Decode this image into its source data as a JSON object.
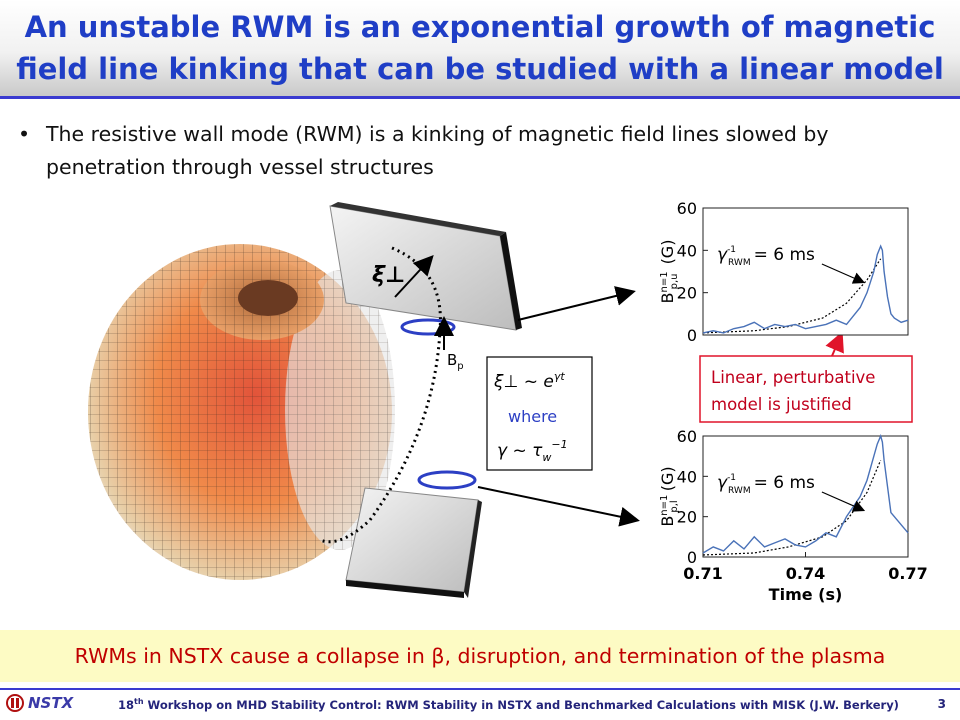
{
  "slide": {
    "title": "An unstable RWM is an exponential growth of magnetic field line kinking that can be studied with a linear model",
    "bullet": "The resistive wall mode (RWM) is a kinking of magnetic field lines slowed by penetration through vessel structures",
    "bottom_banner": "RWMs in NSTX cause a collapse in β, disruption, and termination of the plasma",
    "footer": {
      "logo_text": "NSTX",
      "ordinal": "18",
      "ordinal_suffix": "th",
      "text": " Workshop on MHD Stability Control: RWM Stability in NSTX and Benchmarked Calculations with MISK (J.W. Berkery)",
      "page_number": "3"
    }
  },
  "illustration": {
    "xi_label": "ξ⊥",
    "bp_label": "B",
    "bp_sub": "p",
    "box_line1": "ξ⊥ ~ e",
    "box_line1_exp": "γt",
    "box_where": "where",
    "box_line3": "γ ~ τ",
    "box_line3_sub": "w",
    "box_line3_sup": "−1",
    "callout": [
      "Linear, perturbative",
      "model is justified"
    ]
  },
  "chart_data": [
    {
      "type": "line",
      "name": "upper",
      "ylabel_main": "B",
      "ylabel_sup": "n=1",
      "ylabel_sub": "p,u",
      "ylabel_unit": " (G)",
      "ylim": [
        0,
        60
      ],
      "yticks": [
        "0",
        "20",
        "40",
        "60"
      ],
      "xlim": [
        0.71,
        0.77
      ],
      "annotation": "γ",
      "annotation_sup": "-1",
      "annotation_sub": "RWM",
      "annotation_value": "= 6 ms",
      "x": [
        0.71,
        0.713,
        0.716,
        0.719,
        0.722,
        0.725,
        0.728,
        0.731,
        0.734,
        0.737,
        0.74,
        0.743,
        0.746,
        0.749,
        0.752,
        0.754,
        0.756,
        0.758,
        0.76,
        0.761,
        0.762,
        0.7625,
        0.763,
        0.764,
        0.765,
        0.766,
        0.768,
        0.77
      ],
      "y": [
        1,
        2,
        1,
        3,
        4,
        6,
        3,
        5,
        4,
        5,
        3,
        4,
        5,
        7,
        5,
        9,
        13,
        20,
        30,
        38,
        42,
        40,
        30,
        18,
        10,
        8,
        6,
        7
      ],
      "fit_x": [
        0.71,
        0.725,
        0.735,
        0.745,
        0.752,
        0.758,
        0.762
      ],
      "fit_y": [
        1,
        2,
        4,
        8,
        15,
        26,
        36
      ]
    },
    {
      "type": "line",
      "name": "lower",
      "ylabel_main": "B",
      "ylabel_sup": "n=1",
      "ylabel_sub": "p,l",
      "ylabel_unit": " (G)",
      "ylim": [
        0,
        60
      ],
      "yticks": [
        "0",
        "20",
        "40",
        "60"
      ],
      "xlim": [
        0.71,
        0.77
      ],
      "xticks": [
        "0.71",
        "0.74",
        "0.77"
      ],
      "xticks_values": [
        0.71,
        0.74,
        0.77
      ],
      "xlabel": "Time (s)",
      "annotation": "γ",
      "annotation_sup": "-1",
      "annotation_sub": "RWM",
      "annotation_value": "= 6 ms",
      "x": [
        0.71,
        0.713,
        0.716,
        0.719,
        0.722,
        0.725,
        0.728,
        0.731,
        0.734,
        0.737,
        0.74,
        0.743,
        0.746,
        0.749,
        0.752,
        0.754,
        0.756,
        0.758,
        0.76,
        0.761,
        0.762,
        0.7625,
        0.763,
        0.764,
        0.765,
        0.767,
        0.769,
        0.77
      ],
      "y": [
        2,
        5,
        3,
        8,
        4,
        10,
        5,
        7,
        9,
        6,
        5,
        8,
        12,
        10,
        20,
        25,
        30,
        38,
        50,
        56,
        60,
        57,
        48,
        35,
        22,
        18,
        14,
        12
      ],
      "fit_x": [
        0.71,
        0.725,
        0.735,
        0.745,
        0.752,
        0.758,
        0.762
      ],
      "fit_y": [
        1,
        2,
        5,
        10,
        18,
        32,
        48
      ]
    }
  ],
  "colors": {
    "title": "#1f3ec6",
    "banner_text": "#c00000",
    "banner_bg": "#fdfbc4",
    "trace": "#4a72b8",
    "callout_border": "#e0142a",
    "callout_text": "#c0001c",
    "loop": "#2c3fc4"
  }
}
